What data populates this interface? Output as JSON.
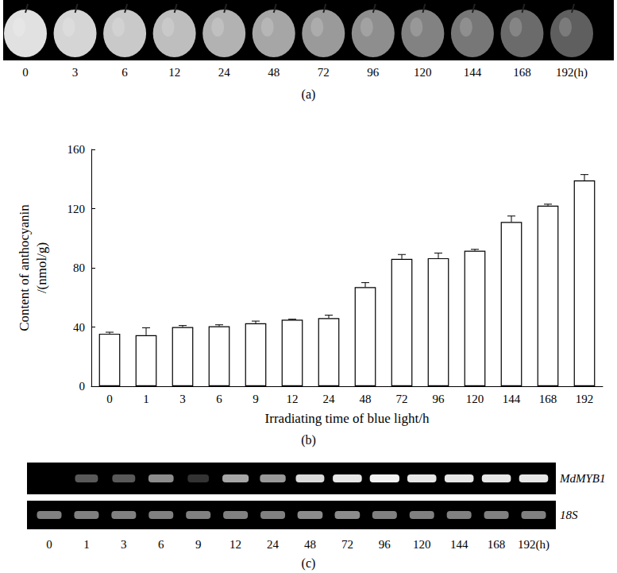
{
  "panel_a": {
    "label": "(a)",
    "time_labels": [
      "0",
      "3",
      "6",
      "12",
      "24",
      "48",
      "72",
      "96",
      "120",
      "144",
      "168",
      "192(h)"
    ]
  },
  "chart_data": {
    "type": "bar",
    "panel_label": "(b)",
    "x_label": "Irradiating time of blue light/h",
    "y_label": "Content of anthocyanin\n/(nmol/g)",
    "categories": [
      "0",
      "1",
      "3",
      "6",
      "9",
      "12",
      "24",
      "48",
      "72",
      "96",
      "120",
      "144",
      "168",
      "192"
    ],
    "values": [
      35.5,
      34.5,
      40,
      40.5,
      42.5,
      45,
      46,
      67,
      86,
      86.5,
      91.5,
      111,
      122,
      139
    ],
    "errors": [
      1,
      5,
      1,
      1,
      1.5,
      0.3,
      2,
      3,
      3,
      3.5,
      1,
      4,
      1,
      4
    ],
    "color": "#ffffff",
    "ylim": [
      0,
      160
    ],
    "yticks": [
      0,
      40,
      80,
      120,
      160
    ],
    "grid": false
  },
  "panel_c": {
    "label": "(c)",
    "lane_labels": [
      "0",
      "1",
      "3",
      "6",
      "9",
      "12",
      "24",
      "48",
      "72",
      "96",
      "120",
      "144",
      "168",
      "192(h)"
    ],
    "bands": [
      {
        "name": "MdMYB1",
        "intensity": [
          0,
          0.35,
          0.35,
          0.55,
          0.2,
          0.65,
          0.6,
          0.85,
          0.9,
          0.95,
          0.9,
          0.9,
          0.9,
          0.9
        ]
      },
      {
        "name": "18S",
        "intensity": [
          0.5,
          0.5,
          0.5,
          0.5,
          0.5,
          0.5,
          0.5,
          0.55,
          0.55,
          0.5,
          0.5,
          0.5,
          0.5,
          0.5
        ]
      }
    ]
  }
}
